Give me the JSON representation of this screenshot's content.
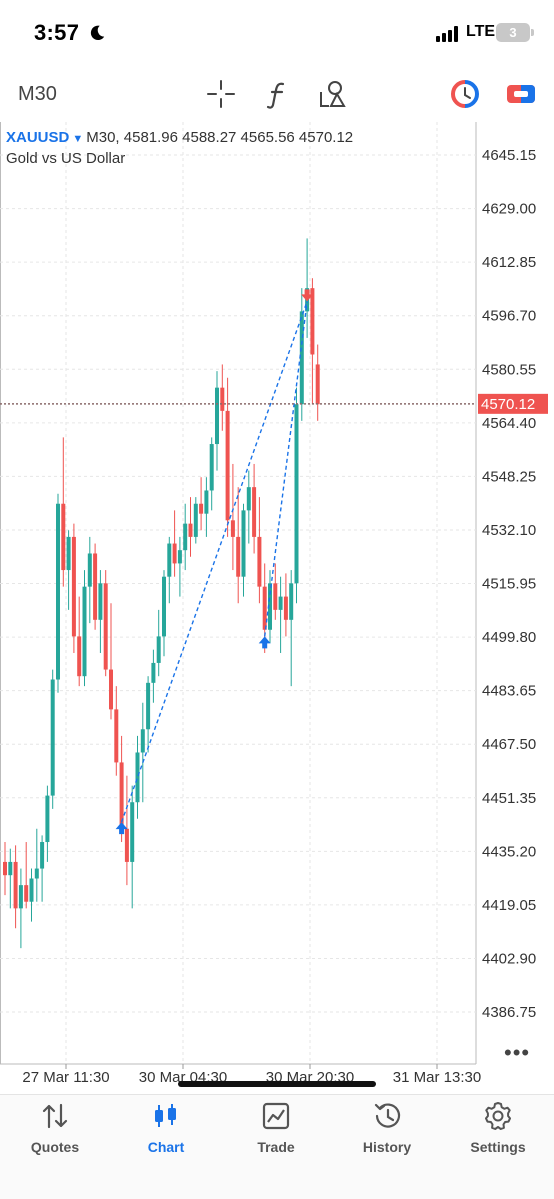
{
  "status": {
    "time": "3:57",
    "network": "LTE",
    "battery": "3"
  },
  "toolbar": {
    "timeframe": "M30",
    "icons": [
      "crosshair-icon",
      "indicator-f-icon",
      "objects-icon",
      "one-click-trading-icon",
      "trade-panel-icon"
    ]
  },
  "chart": {
    "symbol": "XAUUSD",
    "period": "M30,",
    "ohlc": "4581.96 4588.27 4565.56 4570.12",
    "description": "Gold vs US Dollar",
    "current_price": "4570.12",
    "colors": {
      "bull": "#26a69a",
      "bear": "#ef5350",
      "line": "#1a73e8",
      "price": "#ef5350"
    }
  },
  "chart_data": {
    "type": "candlestick",
    "y_ticks": [
      "4645.15",
      "4629.00",
      "4612.85",
      "4596.70",
      "4580.55",
      "4564.40",
      "4548.25",
      "4532.10",
      "4515.95",
      "4499.80",
      "4483.65",
      "4467.50",
      "4451.35",
      "4435.20",
      "4419.05",
      "4402.90",
      "4386.75"
    ],
    "x_ticks": [
      "27 Mar 11:30",
      "30 Mar 04:30",
      "30 Mar 20:30",
      "31 Mar 13:30"
    ],
    "ylim": [
      4381,
      4651
    ],
    "last_price": 4570.12,
    "candles": [
      [
        4432,
        4438,
        4422,
        4428
      ],
      [
        4428,
        4436,
        4418,
        4432
      ],
      [
        4432,
        4437,
        4412,
        4418
      ],
      [
        4418,
        4430,
        4406,
        4425
      ],
      [
        4425,
        4438,
        4418,
        4420
      ],
      [
        4420,
        4430,
        4414,
        4427
      ],
      [
        4427,
        4442,
        4420,
        4430
      ],
      [
        4430,
        4440,
        4420,
        4438
      ],
      [
        4438,
        4455,
        4432,
        4452
      ],
      [
        4452,
        4490,
        4448,
        4487
      ],
      [
        4487,
        4543,
        4483,
        4540
      ],
      [
        4540,
        4560,
        4515,
        4520
      ],
      [
        4520,
        4532,
        4508,
        4530
      ],
      [
        4530,
        4534,
        4495,
        4500
      ],
      [
        4500,
        4512,
        4485,
        4488
      ],
      [
        4488,
        4520,
        4485,
        4515
      ],
      [
        4515,
        4530,
        4504,
        4525
      ],
      [
        4525,
        4528,
        4502,
        4505
      ],
      [
        4505,
        4520,
        4495,
        4516
      ],
      [
        4516,
        4520,
        4488,
        4490
      ],
      [
        4490,
        4510,
        4475,
        4478
      ],
      [
        4478,
        4485,
        4458,
        4462
      ],
      [
        4462,
        4470,
        4438,
        4442
      ],
      [
        4442,
        4458,
        4425,
        4432
      ],
      [
        4432,
        4455,
        4418,
        4450
      ],
      [
        4450,
        4470,
        4445,
        4465
      ],
      [
        4465,
        4480,
        4450,
        4472
      ],
      [
        4472,
        4488,
        4465,
        4486
      ],
      [
        4486,
        4496,
        4480,
        4492
      ],
      [
        4492,
        4508,
        4488,
        4500
      ],
      [
        4500,
        4520,
        4494,
        4518
      ],
      [
        4518,
        4530,
        4510,
        4528
      ],
      [
        4528,
        4538,
        4518,
        4522
      ],
      [
        4522,
        4530,
        4512,
        4526
      ],
      [
        4526,
        4540,
        4520,
        4534
      ],
      [
        4534,
        4542,
        4524,
        4530
      ],
      [
        4530,
        4542,
        4528,
        4540
      ],
      [
        4540,
        4548,
        4532,
        4537
      ],
      [
        4537,
        4548,
        4530,
        4544
      ],
      [
        4544,
        4560,
        4538,
        4558
      ],
      [
        4558,
        4580,
        4550,
        4575
      ],
      [
        4575,
        4582,
        4562,
        4568
      ],
      [
        4568,
        4578,
        4530,
        4535
      ],
      [
        4535,
        4552,
        4520,
        4530
      ],
      [
        4530,
        4545,
        4510,
        4518
      ],
      [
        4518,
        4540,
        4512,
        4538
      ],
      [
        4538,
        4550,
        4528,
        4545
      ],
      [
        4545,
        4552,
        4525,
        4530
      ],
      [
        4530,
        4542,
        4510,
        4515
      ],
      [
        4515,
        4522,
        4495,
        4502
      ],
      [
        4502,
        4520,
        4498,
        4516
      ],
      [
        4516,
        4522,
        4505,
        4508
      ],
      [
        4508,
        4518,
        4495,
        4512
      ],
      [
        4512,
        4519,
        4500,
        4505
      ],
      [
        4505,
        4520,
        4485,
        4516
      ],
      [
        4516,
        4575,
        4510,
        4570
      ],
      [
        4570,
        4605,
        4565,
        4598
      ],
      [
        4598,
        4620,
        4590,
        4605
      ],
      [
        4605,
        4608,
        4570,
        4585
      ],
      [
        4582,
        4588,
        4565,
        4570
      ]
    ],
    "trades": [
      {
        "type": "buy",
        "index": 22,
        "price": 4444
      },
      {
        "type": "buy",
        "index": 49,
        "price": 4500
      },
      {
        "type": "sell",
        "index": 57,
        "price": 4601
      }
    ]
  },
  "tabs": [
    {
      "label": "Quotes",
      "icon": "quotes-icon"
    },
    {
      "label": "Chart",
      "icon": "chart-icon"
    },
    {
      "label": "Trade",
      "icon": "trade-icon"
    },
    {
      "label": "History",
      "icon": "history-icon"
    },
    {
      "label": "Settings",
      "icon": "settings-icon"
    }
  ]
}
